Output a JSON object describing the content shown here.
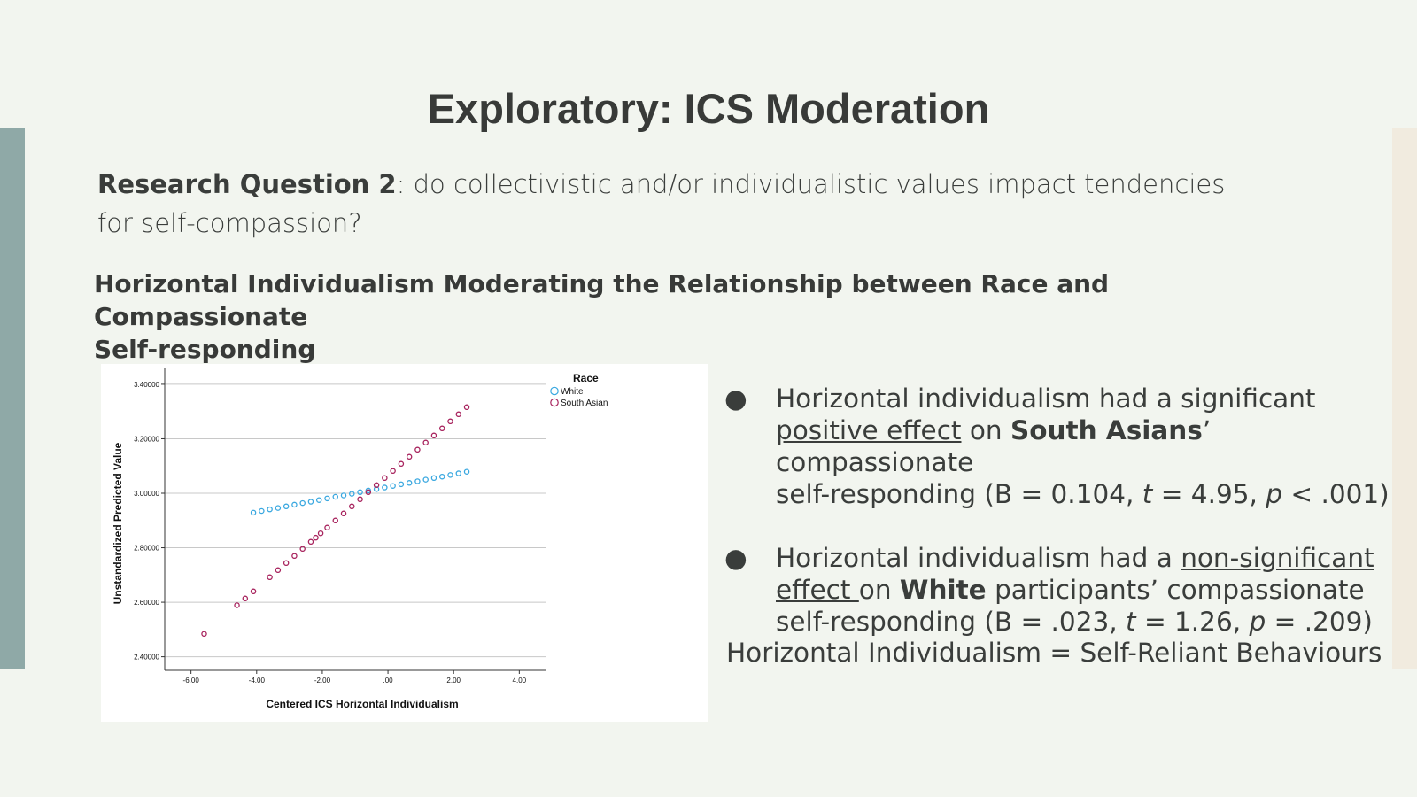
{
  "slide": {
    "title": "Exploratory: ICS Moderation",
    "research_question": {
      "label": "Research Question 2",
      "text_line1": ": do collectivistic and/or individualistic values impact tendencies",
      "text_line2": "for self-compassion?"
    },
    "figure_title_line1": "Horizontal Individualism Moderating the Relationship between Race and Compassionate",
    "figure_title_line2": "Self-responding",
    "bullets": [
      {
        "p1": "Horizontal individualism had a significant",
        "u1": "positive effect",
        "p2": " on ",
        "b1": "South Asians",
        "p3": "’ compassionate",
        "p4": "self-responding (B = 0.104, ",
        "i1": "t",
        "p5": " = 4.95, ",
        "i2": "p",
        "p6": " < .001)"
      },
      {
        "p1": "Horizontal individualism had a ",
        "u1": "non-significant",
        "u2": "effect ",
        "p2": "on ",
        "b1": "White",
        "p3": " participants’ compassionate",
        "p4": "self-responding (B = .023, ",
        "i1": "t",
        "p5": " = 1.26, ",
        "i2": "p",
        "p6": " = .209)"
      }
    ],
    "bullet_symbol": "●",
    "definition": "Horizontal Individualism = Self-Reliant Behaviours"
  },
  "chart_data": {
    "type": "scatter",
    "title": "",
    "xlabel": "Centered ICS Horizontal Individualism",
    "ylabel": "Unstandardized Predicted Value",
    "xlim": [
      -6.8,
      4.8
    ],
    "ylim": [
      2.35,
      3.455
    ],
    "x_ticks": [
      -6,
      -4,
      -2,
      0,
      2,
      4
    ],
    "x_tick_labels": [
      "-6.00",
      "-4.00",
      "-2.00",
      ".00",
      "2.00",
      "4.00"
    ],
    "y_ticks": [
      2.4,
      2.6,
      2.8,
      3.0,
      3.2,
      3.4
    ],
    "y_tick_labels": [
      "2.40000",
      "2.60000",
      "2.80000",
      "3.00000",
      "3.20000",
      "3.40000"
    ],
    "grid": "horizontal",
    "legend_title": "Race",
    "legend_position": "top-right",
    "series": [
      {
        "name": "White",
        "color": "#3aa8e0",
        "x": [
          -4.1,
          -3.85,
          -3.6,
          -3.35,
          -3.1,
          -2.85,
          -2.6,
          -2.35,
          -2.1,
          -1.85,
          -1.6,
          -1.35,
          -1.1,
          -0.85,
          -0.6,
          -0.35,
          -0.1,
          0.15,
          0.4,
          0.65,
          0.9,
          1.15,
          1.4,
          1.65,
          1.9,
          2.15,
          2.4
        ],
        "y": [
          2.929,
          2.935,
          2.941,
          2.946,
          2.952,
          2.958,
          2.964,
          2.969,
          2.975,
          2.981,
          2.987,
          2.992,
          2.998,
          3.004,
          3.01,
          3.015,
          3.021,
          3.027,
          3.033,
          3.038,
          3.044,
          3.05,
          3.056,
          3.061,
          3.067,
          3.073,
          3.079
        ]
      },
      {
        "name": "South Asian",
        "color": "#a8245e",
        "x": [
          -5.6,
          -4.6,
          -4.35,
          -4.1,
          -3.6,
          -3.35,
          -3.1,
          -2.85,
          -2.6,
          -2.35,
          -2.2,
          -2.05,
          -1.85,
          -1.6,
          -1.35,
          -1.1,
          -0.85,
          -0.6,
          -0.35,
          -0.1,
          0.15,
          0.4,
          0.65,
          0.9,
          1.15,
          1.4,
          1.65,
          1.9,
          2.15,
          2.4
        ],
        "y": [
          2.484,
          2.589,
          2.614,
          2.64,
          2.692,
          2.718,
          2.744,
          2.77,
          2.796,
          2.822,
          2.837,
          2.853,
          2.874,
          2.9,
          2.926,
          2.952,
          2.978,
          3.004,
          3.03,
          3.056,
          3.082,
          3.108,
          3.134,
          3.16,
          3.186,
          3.212,
          3.238,
          3.264,
          3.29,
          3.316
        ]
      }
    ]
  }
}
